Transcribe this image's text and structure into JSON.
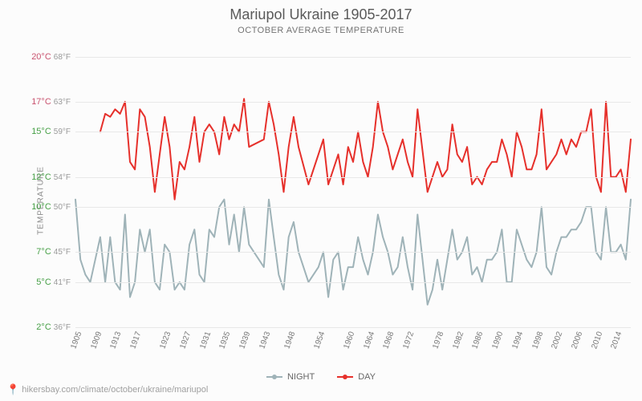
{
  "title": "Mariupol Ukraine 1905-2017",
  "subtitle": "OCTOBER AVERAGE TEMPERATURE",
  "ylabel": "TEMPERATURE",
  "source_url": "hikersbay.com/climate/october/ukraine/mariupol",
  "legend": {
    "night": "NIGHT",
    "day": "DAY"
  },
  "chart": {
    "type": "line",
    "background_color": "#fcfcfc",
    "grid_color": "#e8e8e8",
    "xlim": [
      1905,
      2017
    ],
    "ylim": [
      2,
      21
    ],
    "yticks": [
      {
        "c": "2°C",
        "f": "36°F",
        "color": "#47a047"
      },
      {
        "c": "5°C",
        "f": "41°F",
        "color": "#47a047"
      },
      {
        "c": "7°C",
        "f": "45°F",
        "color": "#47a047"
      },
      {
        "c": "10°C",
        "f": "50°F",
        "color": "#47a047"
      },
      {
        "c": "12°C",
        "f": "54°F",
        "color": "#47a047"
      },
      {
        "c": "15°C",
        "f": "59°F",
        "color": "#47a047"
      },
      {
        "c": "17°C",
        "f": "63°F",
        "color": "#c9536f"
      },
      {
        "c": "20°C",
        "f": "68°F",
        "color": "#c9536f"
      }
    ],
    "ytick_values": [
      2,
      5,
      7,
      10,
      12,
      15,
      17,
      20
    ],
    "xticks": [
      1905,
      1909,
      1913,
      1917,
      1923,
      1927,
      1931,
      1935,
      1939,
      1943,
      1948,
      1954,
      1960,
      1964,
      1968,
      1972,
      1978,
      1982,
      1986,
      1990,
      1994,
      1998,
      2002,
      2006,
      2010,
      2014
    ],
    "series": {
      "day": {
        "color": "#e6302b",
        "line_width": 2,
        "marker": "none",
        "x": [
          1910,
          1911,
          1912,
          1913,
          1914,
          1915,
          1916,
          1917,
          1918,
          1919,
          1920,
          1921,
          1922,
          1923,
          1924,
          1925,
          1926,
          1927,
          1928,
          1929,
          1930,
          1931,
          1932,
          1933,
          1934,
          1935,
          1936,
          1937,
          1938,
          1939,
          1940,
          1943,
          1944,
          1945,
          1946,
          1947,
          1948,
          1949,
          1950,
          1952,
          1954,
          1955,
          1956,
          1957,
          1958,
          1959,
          1960,
          1961,
          1962,
          1963,
          1964,
          1965,
          1966,
          1967,
          1968,
          1969,
          1970,
          1971,
          1972,
          1973,
          1974,
          1976,
          1977,
          1978,
          1979,
          1980,
          1981,
          1982,
          1983,
          1984,
          1985,
          1986,
          1987,
          1988,
          1989,
          1990,
          1991,
          1992,
          1993,
          1994,
          1995,
          1996,
          1997,
          1998,
          1999,
          2000,
          2001,
          2002,
          2003,
          2004,
          2005,
          2006,
          2007,
          2008,
          2009,
          2010,
          2011,
          2012,
          2013,
          2014,
          2015,
          2016,
          2017
        ],
        "y": [
          15.0,
          16.2,
          16.0,
          16.5,
          16.2,
          17.0,
          13.0,
          12.5,
          16.5,
          16.0,
          14.0,
          11.0,
          13.5,
          16.0,
          14.0,
          10.5,
          13.0,
          12.5,
          14.0,
          16.0,
          13.0,
          15.0,
          15.5,
          15.0,
          13.5,
          16.0,
          14.5,
          15.5,
          15.0,
          17.2,
          14.0,
          14.5,
          17.0,
          15.5,
          13.5,
          11.0,
          14.0,
          16.0,
          14.0,
          11.5,
          13.5,
          14.5,
          11.5,
          12.5,
          13.5,
          11.5,
          14.0,
          13.0,
          15.0,
          13.0,
          12.0,
          14.0,
          17.0,
          15.0,
          14.0,
          12.5,
          13.5,
          14.5,
          13.0,
          12.0,
          16.5,
          11.0,
          12.0,
          13.0,
          12.0,
          12.5,
          15.5,
          13.5,
          13.0,
          14.0,
          11.5,
          12.0,
          11.5,
          12.5,
          13.0,
          13.0,
          14.5,
          13.5,
          12.0,
          15.0,
          14.0,
          12.5,
          12.5,
          13.5,
          16.5,
          12.5,
          13.0,
          13.5,
          14.5,
          13.5,
          14.5,
          14.0,
          15.0,
          15.0,
          16.5,
          12.0,
          11.0,
          17.0,
          12.0,
          12.0,
          12.5,
          11.0,
          14.5
        ]
      },
      "night": {
        "color": "#9fb3b8",
        "line_width": 2,
        "marker": "none",
        "x": [
          1905,
          1906,
          1907,
          1908,
          1909,
          1910,
          1911,
          1912,
          1913,
          1914,
          1915,
          1916,
          1917,
          1918,
          1919,
          1920,
          1921,
          1922,
          1923,
          1924,
          1925,
          1926,
          1927,
          1928,
          1929,
          1930,
          1931,
          1932,
          1933,
          1934,
          1935,
          1936,
          1937,
          1938,
          1939,
          1940,
          1943,
          1944,
          1945,
          1946,
          1947,
          1948,
          1949,
          1950,
          1952,
          1954,
          1955,
          1956,
          1957,
          1958,
          1959,
          1960,
          1961,
          1962,
          1963,
          1964,
          1965,
          1966,
          1967,
          1968,
          1969,
          1970,
          1971,
          1972,
          1973,
          1974,
          1976,
          1977,
          1978,
          1979,
          1980,
          1981,
          1982,
          1983,
          1984,
          1985,
          1986,
          1987,
          1988,
          1989,
          1990,
          1991,
          1992,
          1993,
          1994,
          1995,
          1996,
          1997,
          1998,
          1999,
          2000,
          2001,
          2002,
          2003,
          2004,
          2005,
          2006,
          2007,
          2008,
          2009,
          2010,
          2011,
          2012,
          2013,
          2014,
          2015,
          2016,
          2017
        ],
        "y": [
          10.5,
          6.5,
          5.5,
          5.0,
          6.5,
          8.0,
          5.0,
          8.0,
          5.0,
          4.5,
          9.5,
          4.0,
          5.0,
          8.5,
          7.0,
          8.5,
          5.0,
          4.5,
          7.5,
          7.0,
          4.5,
          5.0,
          4.5,
          7.5,
          8.5,
          5.5,
          5.0,
          8.5,
          8.0,
          10.0,
          10.5,
          7.5,
          9.5,
          7.0,
          10.0,
          7.5,
          6.0,
          10.5,
          8.0,
          5.5,
          4.5,
          8.0,
          9.0,
          7.0,
          5.0,
          6.0,
          7.0,
          4.0,
          6.5,
          7.0,
          4.5,
          6.0,
          6.0,
          8.0,
          6.5,
          5.5,
          7.0,
          9.5,
          8.0,
          7.0,
          5.5,
          6.0,
          8.0,
          6.0,
          4.5,
          9.5,
          3.5,
          4.5,
          6.5,
          4.5,
          6.5,
          8.5,
          6.5,
          7.0,
          8.0,
          5.5,
          6.0,
          5.0,
          6.5,
          6.5,
          7.0,
          8.5,
          5.0,
          5.0,
          8.5,
          7.5,
          6.5,
          6.0,
          7.0,
          10.0,
          6.0,
          5.5,
          7.0,
          8.0,
          8.0,
          8.5,
          8.5,
          9.0,
          10.0,
          10.0,
          7.0,
          6.5,
          10.0,
          7.0,
          7.0,
          7.5,
          6.5,
          10.5
        ]
      }
    }
  }
}
